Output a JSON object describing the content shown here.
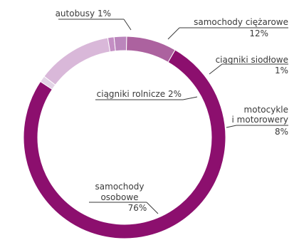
{
  "chart_data": {
    "type": "pie",
    "donut": true,
    "title": "",
    "series": [
      {
        "name": "samochody osobowe",
        "label_lines": [
          "samochody",
          "osobowe"
        ],
        "value": 76,
        "value_label": "76%",
        "color": "#8c0f6e"
      },
      {
        "name": "autobusy",
        "label_lines": [
          "autobusy 1%"
        ],
        "value": 1,
        "value_label": "",
        "color": "#e3d3e6"
      },
      {
        "name": "samochody ciężarowe",
        "label_lines": [
          "samochody ciężarowe"
        ],
        "value": 12,
        "value_label": "12%",
        "color": "#d9b8d9"
      },
      {
        "name": "ciągniki siodłowe",
        "label_lines": [
          "ciągniki siodłowe"
        ],
        "value": 1,
        "value_label": "1%",
        "color": "#c48fc4"
      },
      {
        "name": "ciągniki rolnicze",
        "label_lines": [
          "ciągniki rolnicze 2%"
        ],
        "value": 2,
        "value_label": "",
        "color": "#bb86bc"
      },
      {
        "name": "motocykle i motorowery",
        "label_lines": [
          "motocykle",
          "i motorowery"
        ],
        "value": 8,
        "value_label": "8%",
        "color": "#ac629f"
      }
    ],
    "start_angle_deg": -60,
    "legend": "none"
  }
}
